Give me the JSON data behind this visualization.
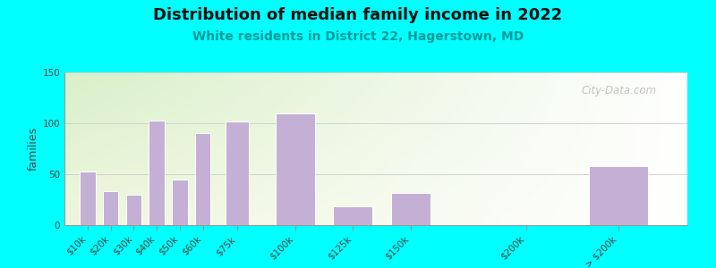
{
  "title": "Distribution of median family income in 2022",
  "subtitle": "White residents in District 22, Hagerstown, MD",
  "ylabel": "families",
  "background_outer": "#00FFFF",
  "bar_color": "#C4B0D5",
  "bar_edge_color": "#FFFFFF",
  "categories": [
    "$10k",
    "$20k",
    "$30k",
    "$40k",
    "$50k",
    "$60k",
    "$75k",
    "$100k",
    "$125k",
    "$150k",
    "$200k",
    "> $200k"
  ],
  "x_positions": [
    10,
    20,
    30,
    40,
    50,
    60,
    75,
    100,
    125,
    150,
    200,
    240
  ],
  "bar_widths": [
    8,
    8,
    8,
    8,
    8,
    8,
    12,
    20,
    20,
    20,
    30,
    30
  ],
  "values": [
    53,
    33,
    30,
    103,
    45,
    90,
    102,
    110,
    18,
    32,
    0,
    58
  ],
  "ylim": [
    0,
    150
  ],
  "yticks": [
    0,
    50,
    100,
    150
  ],
  "watermark": "City-Data.com",
  "title_fontsize": 13,
  "subtitle_fontsize": 10,
  "ylabel_fontsize": 9,
  "tick_fontsize": 7.5
}
